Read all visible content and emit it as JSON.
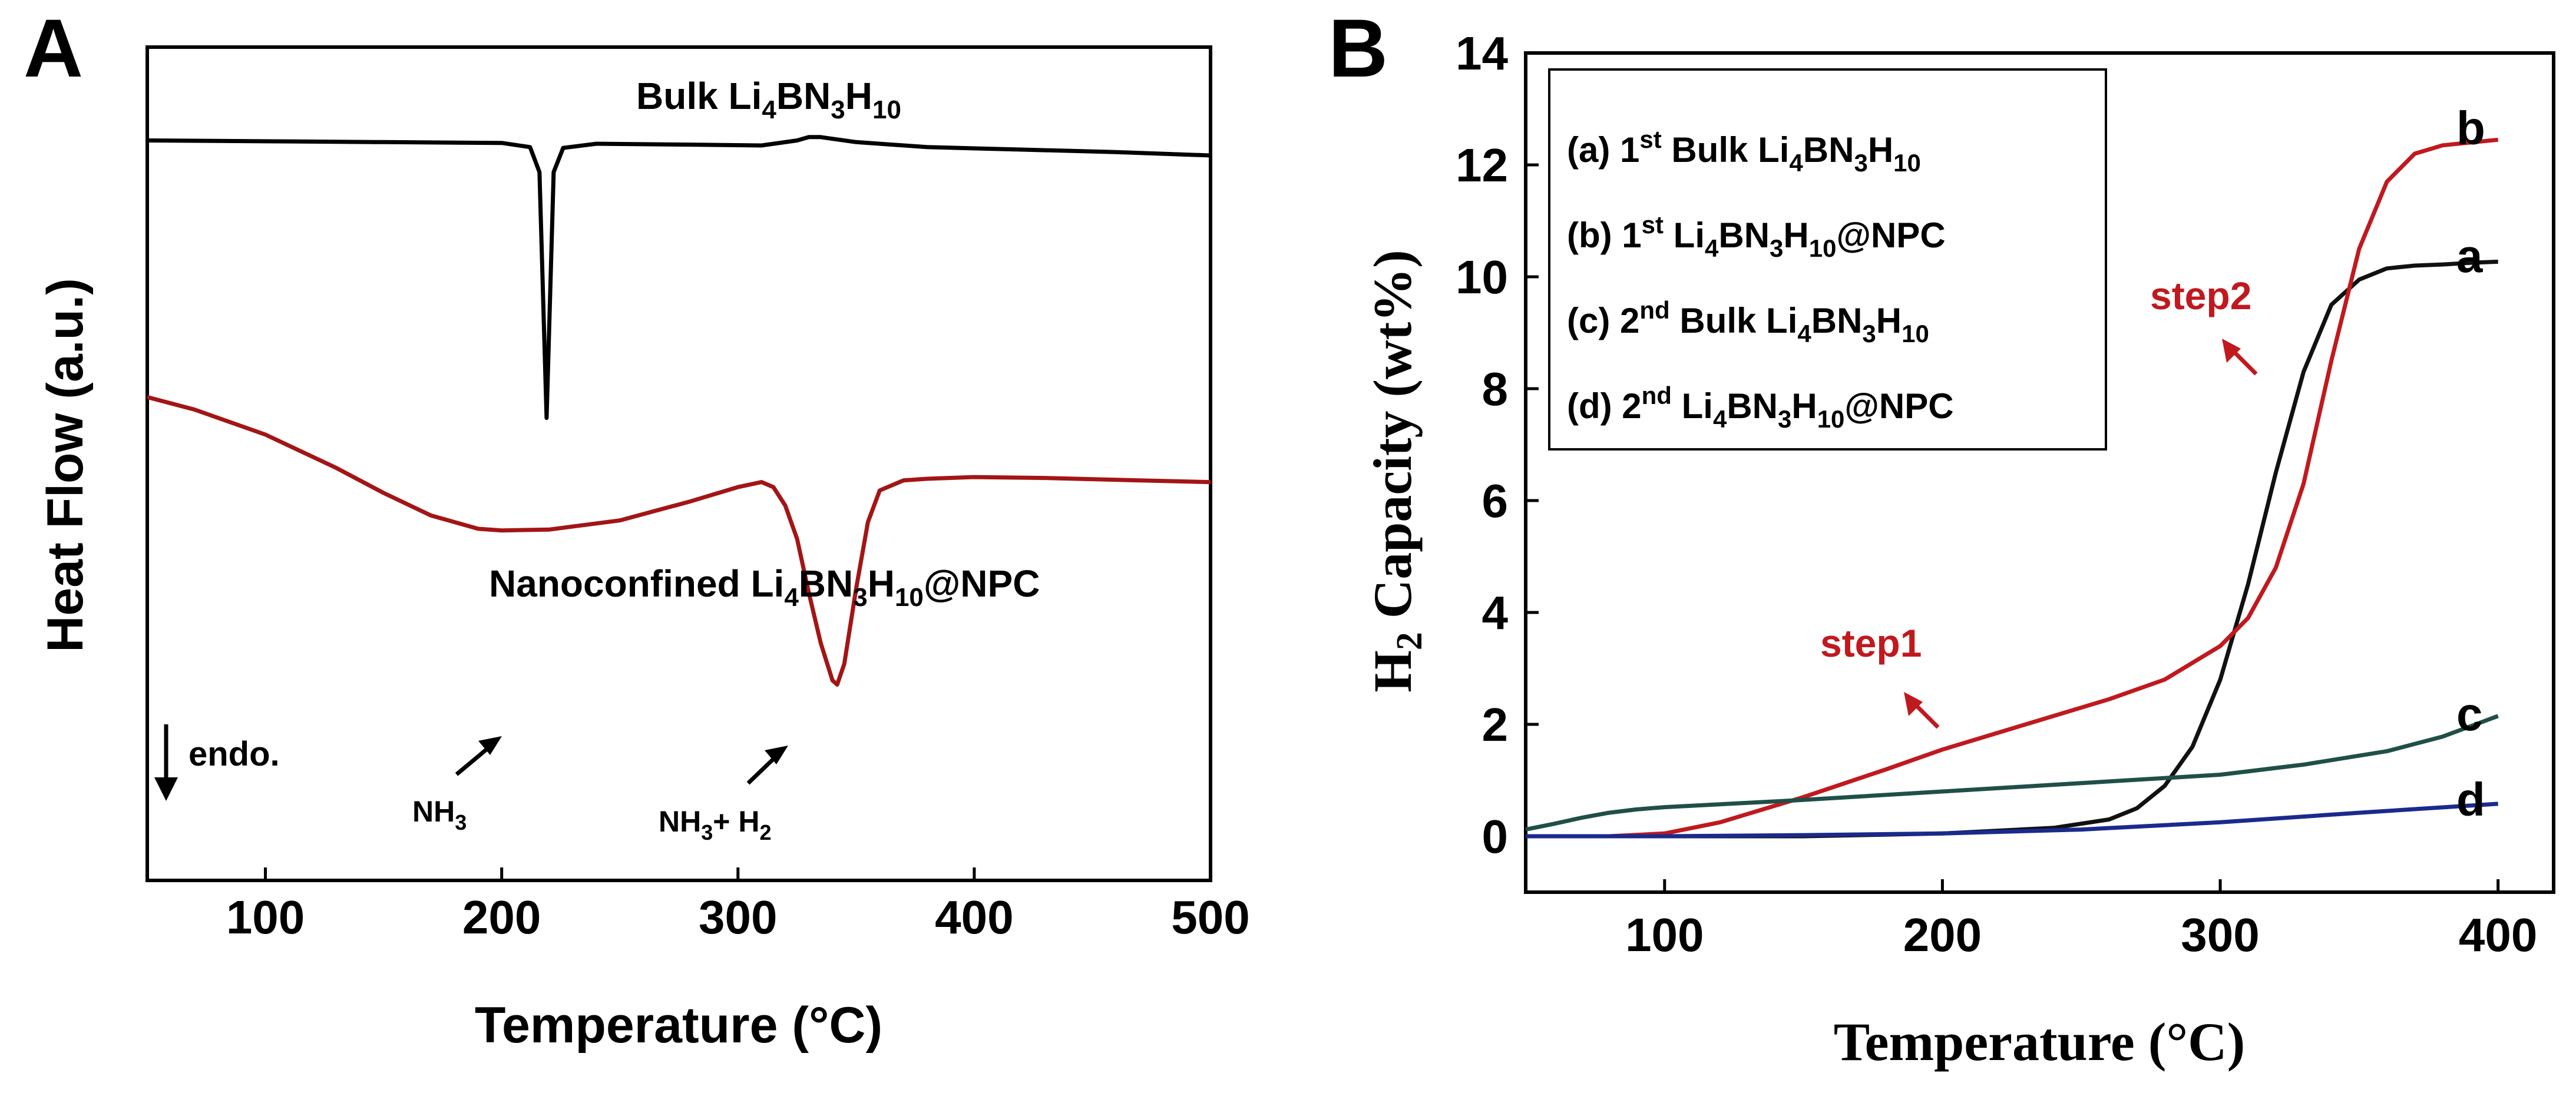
{
  "chart_data": [
    {
      "panel_label": "A",
      "type": "line",
      "title": "",
      "xlabel": "Temperature (°C)",
      "ylabel": "Heat Flow (a.u.)",
      "xlim": [
        50,
        500
      ],
      "x_ticks": [
        100,
        200,
        300,
        400,
        500
      ],
      "x_tick_labels": [
        "100",
        "200",
        "300",
        "400",
        "500"
      ],
      "y_ticks_shown": false,
      "ylim_arbitrary": [
        0,
        10
      ],
      "grid": false,
      "series": [
        {
          "name": "Bulk Li4BN3H10",
          "color": "#000000",
          "label": {
            "base": "Bulk Li",
            "s1": "4",
            "m1": "BN",
            "s2": "3",
            "m2": "H",
            "s3": "10",
            "tail": ""
          },
          "x": [
            50,
            100,
            150,
            200,
            212,
            216,
            219,
            222,
            226,
            240,
            280,
            310,
            325,
            330,
            335,
            340,
            350,
            380,
            420,
            460,
            500
          ],
          "y": [
            8.88,
            8.87,
            8.86,
            8.85,
            8.8,
            8.5,
            5.55,
            8.5,
            8.79,
            8.84,
            8.83,
            8.82,
            8.88,
            8.92,
            8.92,
            8.9,
            8.86,
            8.8,
            8.77,
            8.74,
            8.7
          ]
        },
        {
          "name": "Nanoconfined Li4BN3H10@NPC",
          "color": "#a31515",
          "label": {
            "base": "Nanoconfined Li",
            "s1": "4",
            "m1": "BN",
            "s2": "3",
            "m2": "H",
            "s3": "10",
            "tail": "@NPC"
          },
          "x": [
            50,
            70,
            100,
            130,
            150,
            170,
            190,
            200,
            220,
            250,
            280,
            300,
            310,
            315,
            320,
            325,
            330,
            335,
            340,
            342,
            345,
            350,
            355,
            360,
            370,
            380,
            400,
            430,
            470,
            500
          ],
          "y": [
            5.8,
            5.65,
            5.35,
            4.95,
            4.65,
            4.38,
            4.22,
            4.2,
            4.21,
            4.32,
            4.55,
            4.72,
            4.78,
            4.72,
            4.5,
            4.1,
            3.45,
            2.85,
            2.4,
            2.35,
            2.6,
            3.5,
            4.3,
            4.68,
            4.8,
            4.82,
            4.84,
            4.83,
            4.8,
            4.78
          ]
        }
      ],
      "annotations": {
        "endo": "endo.",
        "nh3_base": "NH",
        "nh3_sub": "3",
        "nh3h2_base": "NH",
        "nh3h2_sub1": "3",
        "nh3h2_mid": "+ H",
        "nh3h2_sub2": "2"
      }
    },
    {
      "panel_label": "B",
      "type": "line",
      "title": "",
      "xlabel": "Temperature (°C)",
      "ylabel_base": "H",
      "ylabel_sub": "2",
      "ylabel_rest": " Capacity (wt%)",
      "xlim": [
        50,
        420
      ],
      "ylim": [
        -1,
        14
      ],
      "x_ticks": [
        100,
        200,
        300,
        400
      ],
      "x_tick_labels": [
        "100",
        "200",
        "300",
        "400"
      ],
      "y_ticks": [
        0,
        2,
        4,
        6,
        8,
        10,
        12,
        14
      ],
      "y_tick_labels": [
        "0",
        "2",
        "4",
        "6",
        "8",
        "10",
        "12",
        "14"
      ],
      "grid": false,
      "legend_position": "top-left",
      "legend": [
        {
          "prefix": "(a) 1",
          "sup": "st",
          "base": " Bulk Li",
          "s1": "4",
          "m1": "BN",
          "s2": "3",
          "m2": "H",
          "s3": "10",
          "tail": ""
        },
        {
          "prefix": "(b) 1",
          "sup": "st",
          "base": " Li",
          "s1": "4",
          "m1": "BN",
          "s2": "3",
          "m2": "H",
          "s3": "10",
          "tail": "@NPC"
        },
        {
          "prefix": "(c) 2",
          "sup": "nd",
          "base": " Bulk Li",
          "s1": "4",
          "m1": "BN",
          "s2": "3",
          "m2": "H",
          "s3": "10",
          "tail": ""
        },
        {
          "prefix": "(d) 2",
          "sup": "nd",
          "base": " Li",
          "s1": "4",
          "m1": "BN",
          "s2": "3",
          "m2": "H",
          "s3": "10",
          "tail": "@NPC"
        }
      ],
      "series": [
        {
          "name": "a",
          "label": "a",
          "color": "#111111",
          "x": [
            50,
            100,
            150,
            200,
            240,
            260,
            270,
            280,
            290,
            300,
            310,
            320,
            330,
            340,
            350,
            360,
            370,
            380,
            390,
            400
          ],
          "y": [
            0,
            0,
            0,
            0.05,
            0.15,
            0.3,
            0.5,
            0.9,
            1.6,
            2.8,
            4.5,
            6.5,
            8.3,
            9.5,
            9.95,
            10.15,
            10.2,
            10.22,
            10.25,
            10.27
          ]
        },
        {
          "name": "b",
          "label": "b",
          "color": "#c0191e",
          "x": [
            50,
            80,
            100,
            120,
            150,
            180,
            200,
            230,
            260,
            280,
            300,
            310,
            320,
            330,
            340,
            350,
            360,
            370,
            380,
            390,
            400
          ],
          "y": [
            0,
            0,
            0.05,
            0.25,
            0.7,
            1.2,
            1.55,
            2.0,
            2.45,
            2.8,
            3.4,
            3.9,
            4.8,
            6.3,
            8.5,
            10.5,
            11.7,
            12.2,
            12.35,
            12.4,
            12.45
          ]
        },
        {
          "name": "c",
          "label": "c",
          "color": "#1f4f48",
          "x": [
            50,
            60,
            70,
            80,
            90,
            100,
            150,
            200,
            250,
            300,
            330,
            360,
            380,
            400
          ],
          "y": [
            0.12,
            0.22,
            0.33,
            0.42,
            0.48,
            0.52,
            0.65,
            0.8,
            0.95,
            1.1,
            1.28,
            1.52,
            1.78,
            2.15
          ]
        },
        {
          "name": "d",
          "label": "d",
          "color": "#1a2a8c",
          "x": [
            50,
            100,
            150,
            200,
            250,
            300,
            350,
            400
          ],
          "y": [
            0,
            0,
            0.02,
            0.05,
            0.12,
            0.25,
            0.42,
            0.58
          ]
        }
      ],
      "annotations": {
        "step1": "step1",
        "step2": "step2"
      }
    }
  ]
}
